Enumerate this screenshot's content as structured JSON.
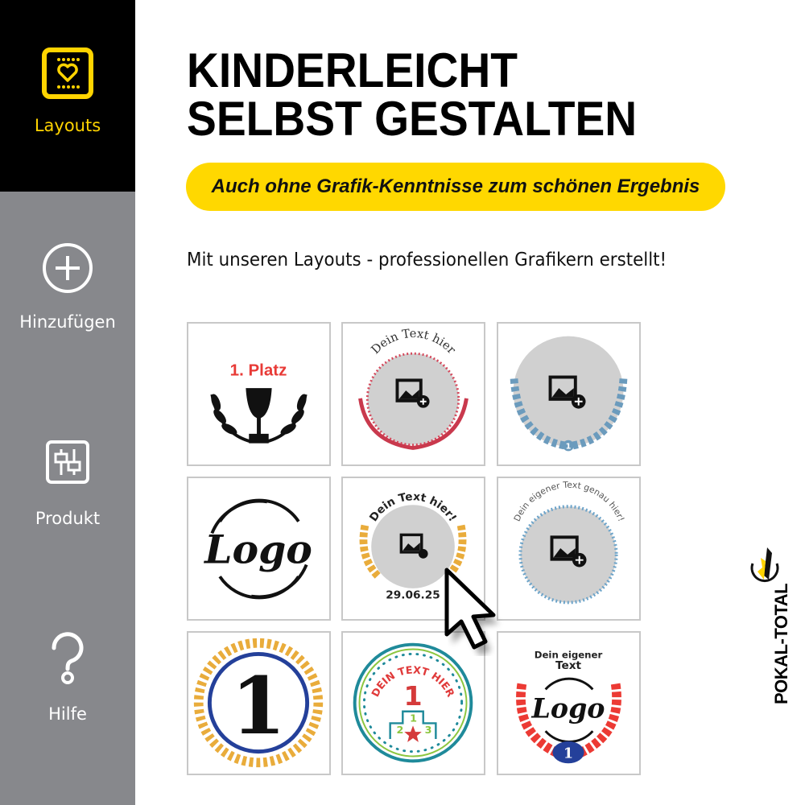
{
  "sidebar": {
    "items": [
      {
        "label": "Layouts",
        "icon": "layout-heart-icon",
        "active": true
      },
      {
        "label": "Hinzufügen",
        "icon": "plus-circle-icon"
      },
      {
        "label": "Produkt",
        "icon": "sliders-icon"
      },
      {
        "label": "Hilfe",
        "icon": "question-icon"
      }
    ]
  },
  "header": {
    "title_line1": "KINDERLEICHT",
    "title_line2": "SELBST GESTALTEN",
    "tagline": "Auch ohne Grafik-Kenntnisse zum schönen Ergebnis",
    "subtitle": "Mit unseren Layouts - professionellen Grafikern erstellt!"
  },
  "layouts": [
    {
      "text": "1. Platz"
    },
    {
      "text": "Dein Text hier"
    },
    {
      "text": "1"
    },
    {
      "text": "Logo"
    },
    {
      "text": "Dein Text hier!",
      "date": "29.06.25"
    },
    {
      "text": "Dein eigener Text genau hier!"
    },
    {
      "text": "1"
    },
    {
      "text": "DEIN TEXT HIER",
      "number": "1",
      "podium": [
        "2",
        "1",
        "3"
      ]
    },
    {
      "text_line1": "Dein eigener",
      "text_line2": "Text",
      "logo": "Logo",
      "number": "1"
    }
  ],
  "brand": {
    "name": "POKAL-TOTAL"
  },
  "colors": {
    "accent": "#ffd400",
    "sidebar": "#87888c",
    "active_bg": "#000000"
  }
}
